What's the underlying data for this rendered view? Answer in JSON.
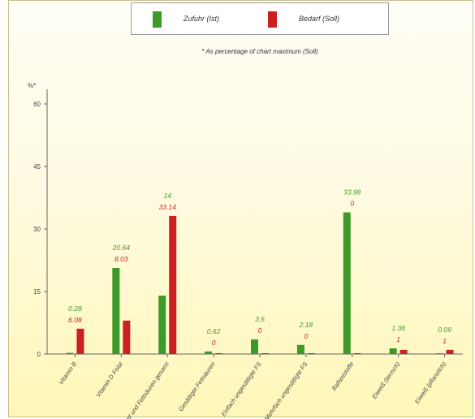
{
  "legend": {
    "series_1_label": "Zufuhr (Ist)",
    "series_2_label": "Bedarf (Soll)",
    "note": "* As percentage of chart maximum (Soll)"
  },
  "colors": {
    "series_1": "#3c9a2a",
    "series_2": "#cc1f1f",
    "axis": "#666666"
  },
  "chart_data": {
    "type": "bar",
    "title": "",
    "xlabel": "",
    "ylabel": "%*",
    "ylim": [
      0,
      60
    ],
    "yticks": [
      0,
      15,
      30,
      45,
      60
    ],
    "grid": false,
    "legend_position": "top-center",
    "categories": [
      "Vitamin B",
      "Vitamin D Folat",
      "Fett und Fettsäuren gesamt",
      "Gesättigte Fettsäuren",
      "Einfach ungesättigte FS",
      "Mehrfach ungesättigte FS",
      "Ballaststoffe",
      "Eiweiß (tierisch)",
      "Eiweiß (pflanzlich)"
    ],
    "series": [
      {
        "name": "Zufuhr (Ist)",
        "values": [
          0.28,
          20.64,
          14,
          0.62,
          3.5,
          2.18,
          33.98,
          1.36,
          0.09
        ],
        "labels": [
          "0.28",
          "20.64",
          "14",
          "0.62",
          "3.5",
          "2.18",
          "33.98",
          "1.36",
          "0.09"
        ]
      },
      {
        "name": "Bedarf (Soll)",
        "values": [
          6.08,
          8.03,
          33.14,
          0,
          0,
          0,
          0,
          1,
          1
        ],
        "labels": [
          "6.08",
          "8.03",
          "33.14",
          "0",
          "0",
          "0",
          "0",
          "1",
          "1"
        ]
      }
    ]
  }
}
